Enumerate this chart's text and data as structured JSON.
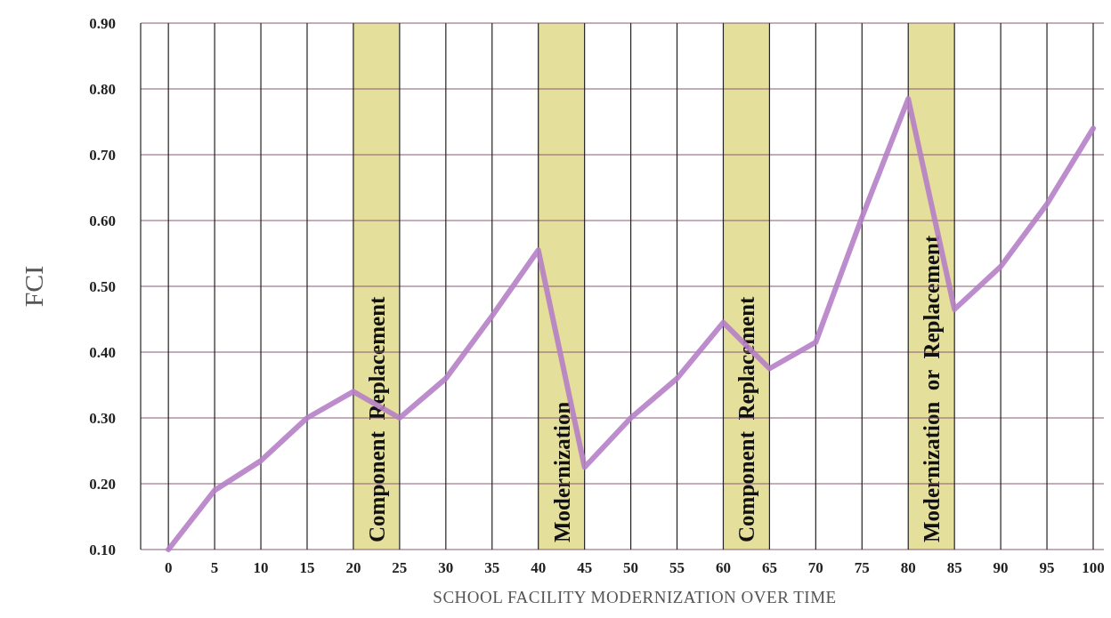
{
  "chart_data": {
    "type": "line",
    "xlabel": "SCHOOL FACILITY MODERNIZATION OVER TIME",
    "ylabel": "FCI",
    "x": [
      0,
      5,
      10,
      15,
      20,
      25,
      30,
      35,
      40,
      45,
      50,
      55,
      60,
      65,
      70,
      75,
      80,
      85,
      90,
      95,
      100
    ],
    "series": [
      {
        "color": "#b67fc6",
        "values": [
          0.1,
          0.19,
          0.235,
          0.3,
          0.34,
          0.3,
          0.36,
          0.455,
          0.555,
          0.225,
          0.3,
          0.36,
          0.445,
          0.375,
          0.415,
          0.605,
          0.785,
          0.465,
          0.53,
          0.625,
          0.74
        ]
      }
    ],
    "xlim": [
      -3,
      100
    ],
    "xticks": [
      0,
      5,
      10,
      15,
      20,
      25,
      30,
      35,
      40,
      45,
      50,
      55,
      60,
      65,
      70,
      75,
      80,
      85,
      90,
      95,
      100
    ],
    "ylim": [
      0.1,
      0.9
    ],
    "yticks": [
      {
        "value": 0.1,
        "label": "0.10"
      },
      {
        "value": 0.2,
        "label": "0.20"
      },
      {
        "value": 0.3,
        "label": "0.30"
      },
      {
        "value": 0.4,
        "label": "0.40"
      },
      {
        "value": 0.5,
        "label": "0.50"
      },
      {
        "value": 0.6,
        "label": "0.60"
      },
      {
        "value": 0.7,
        "label": "0.70"
      },
      {
        "value": 0.8,
        "label": "0.80"
      },
      {
        "value": 0.9,
        "label": "0.90"
      }
    ],
    "grid": true,
    "marker": "none",
    "line_style": "solid",
    "bands": [
      {
        "axis": "x",
        "from": 20,
        "to": 25,
        "label": "Component  Replacement",
        "color": "#e4df9a"
      },
      {
        "axis": "x",
        "from": 40,
        "to": 45,
        "label": "Modernization",
        "color": "#e4df9a"
      },
      {
        "axis": "x",
        "from": 60,
        "to": 65,
        "label": "Component  Replacement",
        "color": "#e4df9a"
      },
      {
        "axis": "x",
        "from": 80,
        "to": 85,
        "label": "Modernization  or  Replacement",
        "color": "#e4df9a"
      }
    ]
  }
}
